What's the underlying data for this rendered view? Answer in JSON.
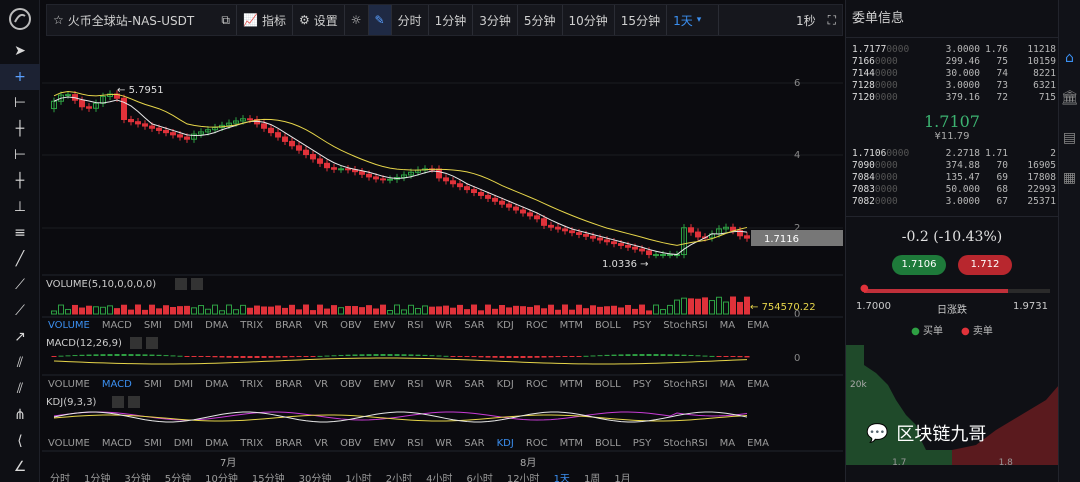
{
  "toolbar": {
    "symbol": "火币全球站-NAS-USDT",
    "indicators": "指标",
    "settings": "设置",
    "intervals": [
      "分时",
      "1分钟",
      "3分钟",
      "5分钟",
      "10分钟",
      "15分钟"
    ],
    "selected_interval": "1天",
    "refresh": "1秒"
  },
  "chart": {
    "high_label": "5.7951",
    "low_label": "1.0336",
    "last_price_tag": "1.7116",
    "y_ticks": [
      "6",
      "4",
      "2"
    ],
    "volume_header": "VOLUME(5,10,0,0,0,0)",
    "volume_value": "754570.22",
    "volume_zero": "0",
    "macd_header": "MACD(12,26,9)",
    "macd_zero": "0",
    "kdj_header": "KDJ(9,3,3)",
    "indicator_tabs": [
      "VOLUME",
      "MACD",
      "SMI",
      "DMI",
      "DMA",
      "TRIX",
      "BRAR",
      "VR",
      "OBV",
      "EMV",
      "RSI",
      "WR",
      "SAR",
      "KDJ",
      "ROC",
      "MTM",
      "BOLL",
      "PSY",
      "StochRSI",
      "MA",
      "EMA"
    ],
    "month_labels": [
      "7月",
      "8月"
    ],
    "bottom_intervals": [
      "分时",
      "1分钟",
      "3分钟",
      "5分钟",
      "10分钟",
      "15分钟",
      "30分钟",
      "1小时",
      "2小时",
      "4小时",
      "6小时",
      "12小时",
      "1天",
      "1周",
      "1月"
    ]
  },
  "orderbook": {
    "title": "委单信息",
    "asks": [
      [
        "1.7177",
        "0000",
        "3.0000",
        "1.76",
        "11218"
      ],
      [
        "7166",
        "0000",
        "299.46",
        "75",
        "10159"
      ],
      [
        "7144",
        "0000",
        "30.000",
        "74",
        "8221"
      ],
      [
        "7128",
        "0000",
        "3.0000",
        "73",
        "6321"
      ],
      [
        "7120",
        "0000",
        "379.16",
        "72",
        "715"
      ]
    ],
    "last_price": "1.7107",
    "last_sub": "¥11.79",
    "bids": [
      [
        "1.7106",
        "0000",
        "2.2718",
        "1.71",
        "2"
      ],
      [
        "7090",
        "0000",
        "374.88",
        "70",
        "16905"
      ],
      [
        "7084",
        "0000",
        "135.47",
        "69",
        "17808"
      ],
      [
        "7083",
        "0000",
        "50.000",
        "68",
        "22993"
      ],
      [
        "7082",
        "0000",
        "3.0000",
        "67",
        "25371"
      ]
    ]
  },
  "stats": {
    "change": "-0.2 (-10.43%)",
    "buy_price": "1.7106",
    "sell_price": "1.712",
    "range_low": "1.7000",
    "range_label": "日涨跌",
    "range_high": "1.9731",
    "depth_buy": "买单",
    "depth_sell": "卖单",
    "depth_y": "20k",
    "depth_x": [
      "1.7",
      "1.8"
    ],
    "watermark": "区块链九哥"
  },
  "colors": {
    "up": "#2ea043",
    "down": "#e0323a",
    "ma5": "#e8e8e8",
    "ma10": "#e6d54a",
    "accent": "#3b8ff0"
  }
}
